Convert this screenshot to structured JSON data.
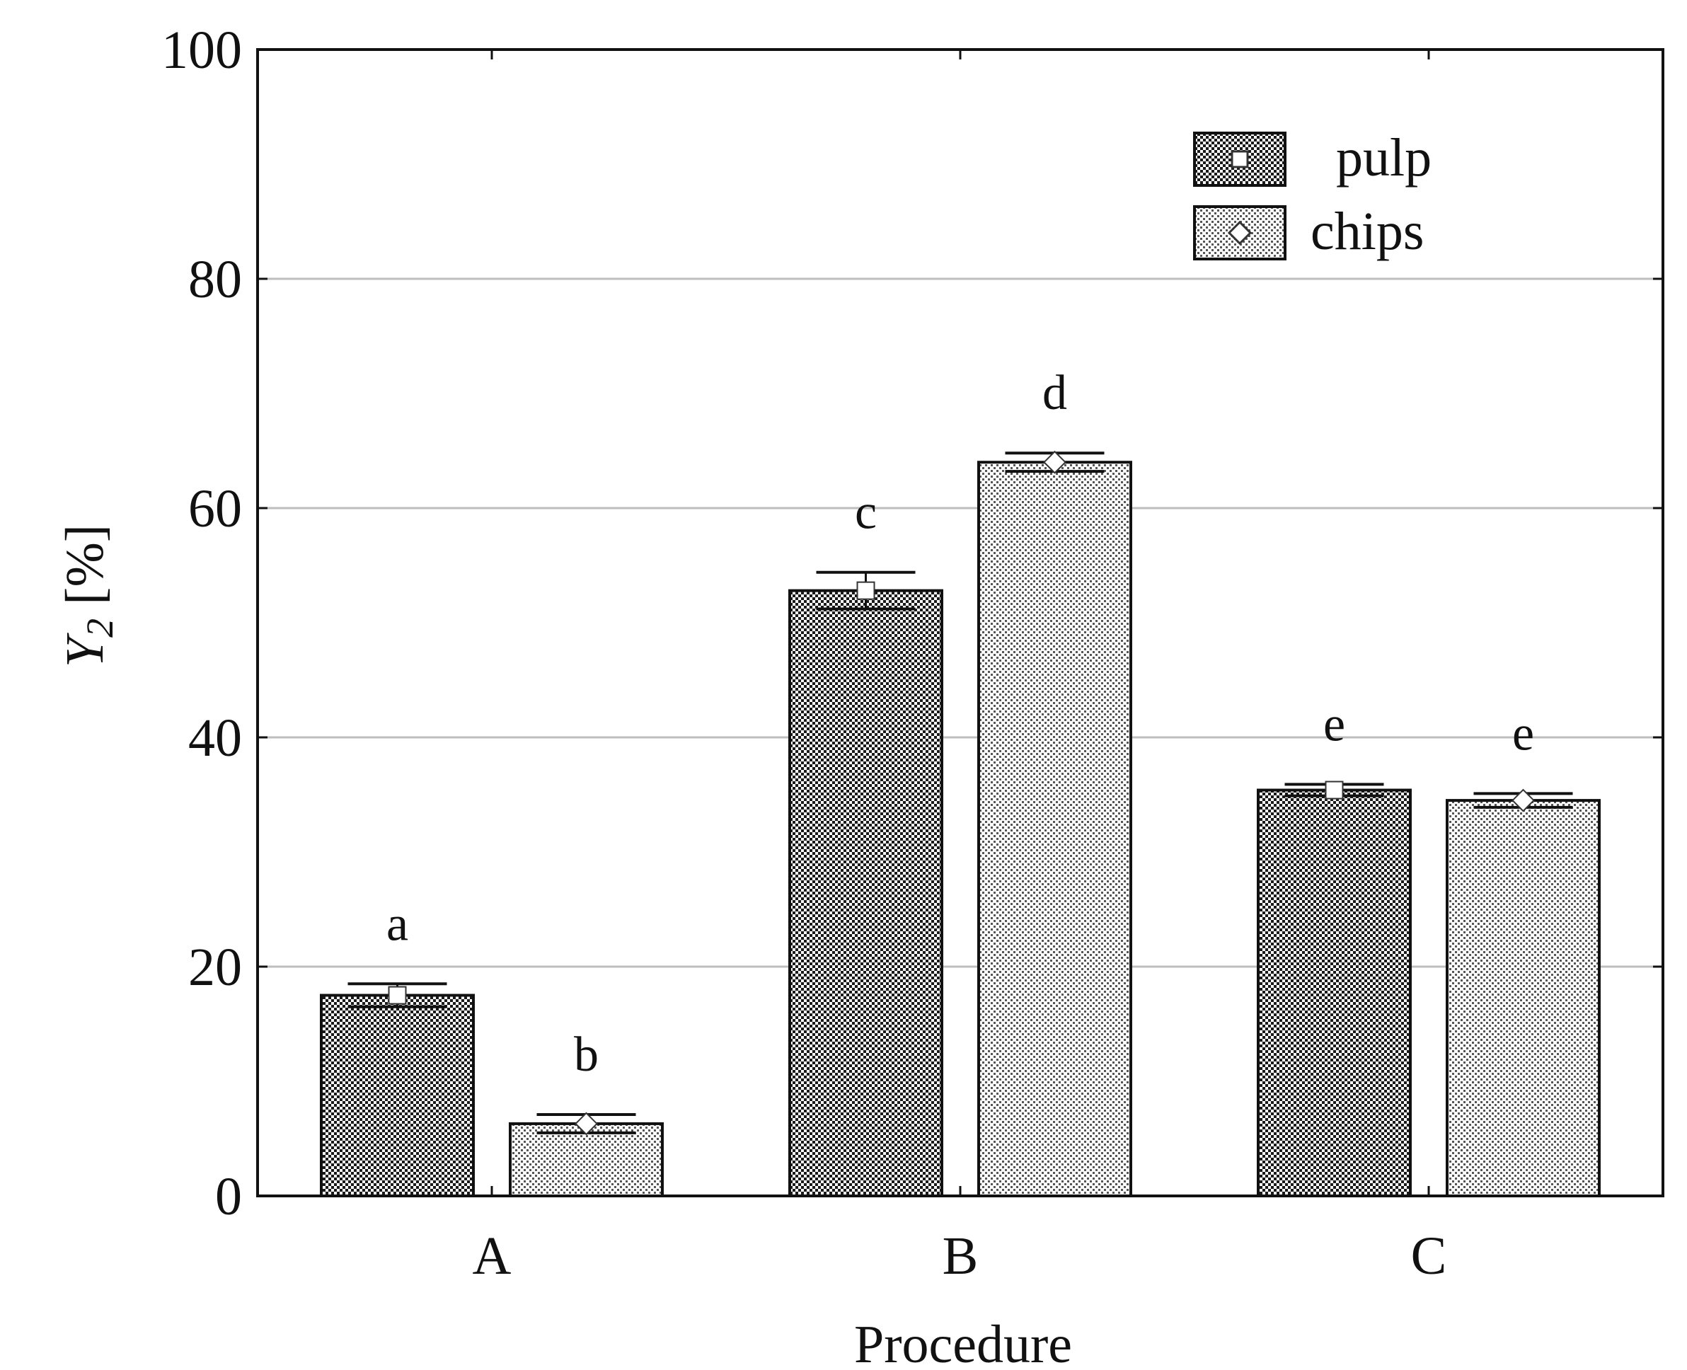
{
  "chart_data": {
    "type": "bar",
    "title": "",
    "xlabel": "Procedure",
    "ylabel": {
      "main": "Y",
      "sub": "2",
      "unit": " [%]"
    },
    "ylim": [
      0,
      100
    ],
    "yticks": [
      "0",
      "20",
      "40",
      "60",
      "80",
      "100"
    ],
    "categories": [
      "A",
      "B",
      "C"
    ],
    "grid": true,
    "legend_position": "top-right",
    "series": [
      {
        "name": "pulp",
        "marker": "square",
        "pattern": "dense-checker",
        "values": [
          17.5,
          52.8,
          35.4
        ],
        "error_low": [
          16.5,
          51.2,
          34.9
        ],
        "error_high": [
          18.5,
          54.4,
          35.9
        ],
        "significance": [
          "a",
          "c",
          "e"
        ]
      },
      {
        "name": "chips",
        "marker": "diamond",
        "pattern": "sparse-dots",
        "values": [
          6.3,
          64.0,
          34.5
        ],
        "error_low": [
          5.5,
          63.2,
          33.9
        ],
        "error_high": [
          7.1,
          64.8,
          35.1
        ],
        "significance": [
          "b",
          "d",
          "e"
        ]
      }
    ]
  },
  "colors": {
    "axis": "#111111",
    "gridline": "#bdbdbd",
    "bar_outline": "#111111",
    "marker_fill": "#ffffff"
  }
}
